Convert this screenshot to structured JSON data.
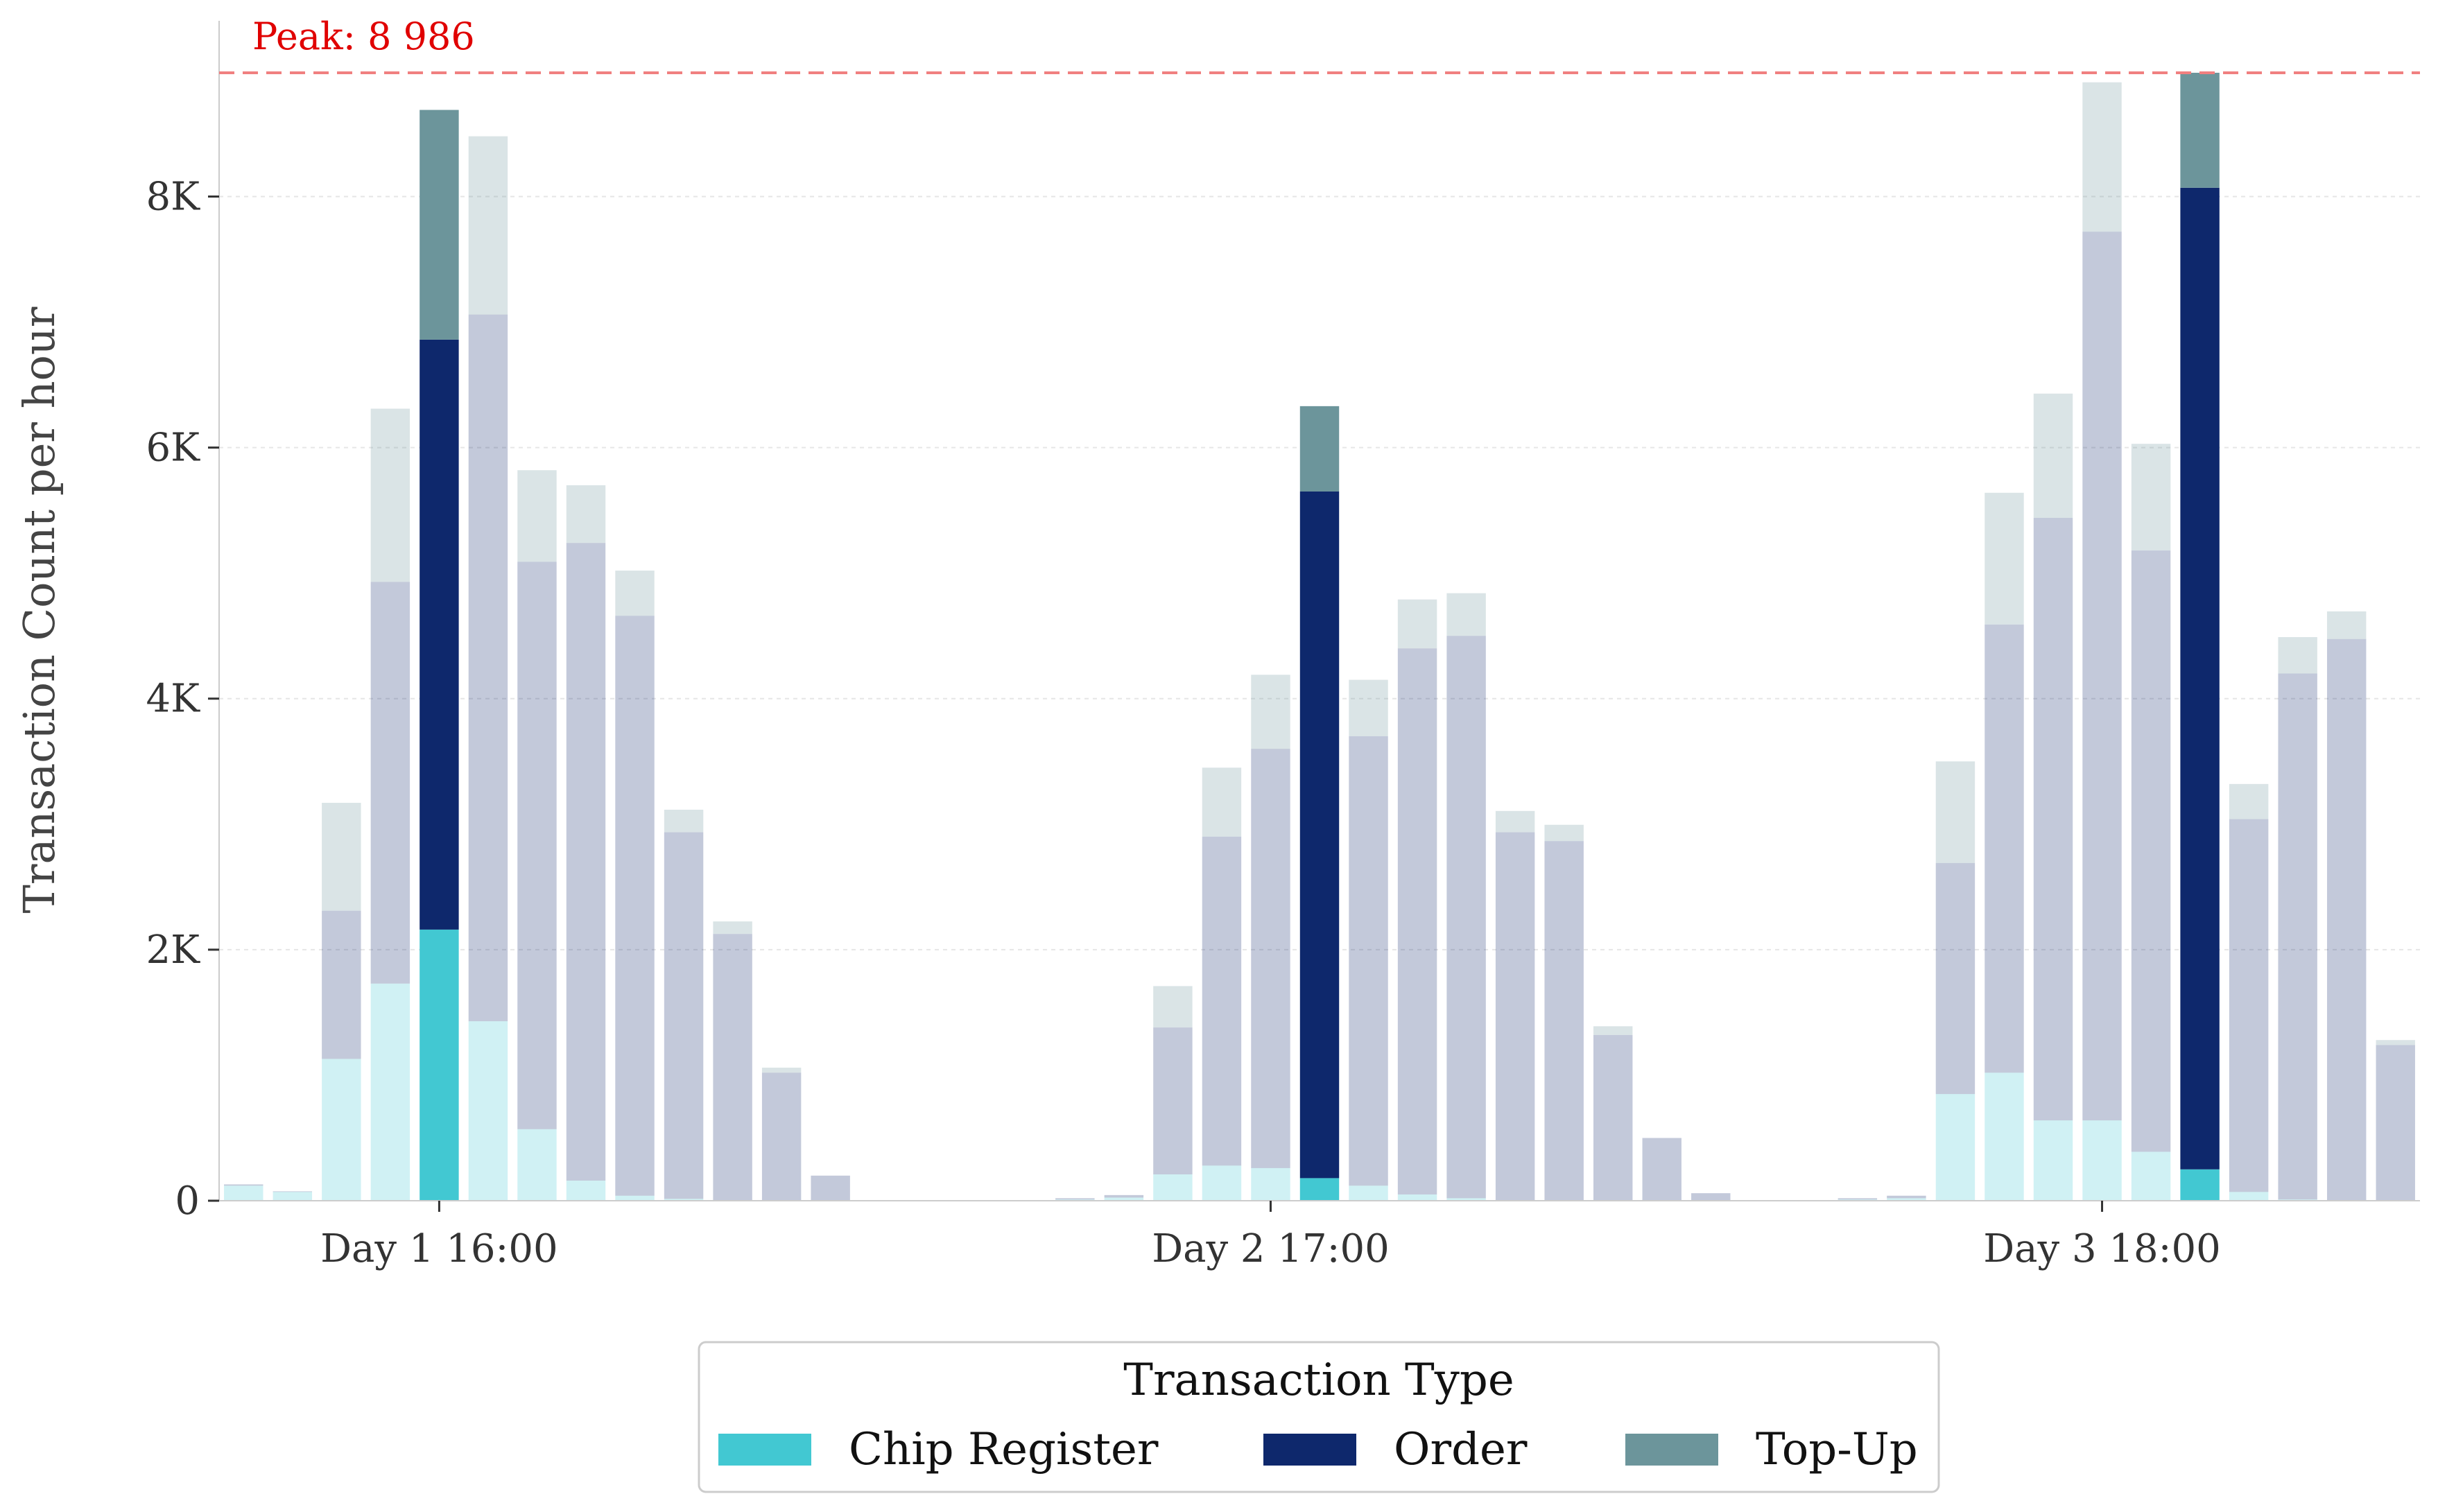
{
  "chart_data": {
    "type": "bar",
    "stacked": true,
    "ylabel": "Transaction Count per hour",
    "ylim": [
      0,
      9400
    ],
    "yticks": [
      0,
      2000,
      4000,
      6000,
      8000
    ],
    "ytick_labels": [
      "0",
      "2K",
      "4K",
      "6K",
      "8K"
    ],
    "xtick_labels": [
      {
        "label": "Day 1 16:00",
        "at": "Day 1 16:00"
      },
      {
        "label": "Day 2 17:00",
        "at": "Day 2 17:00"
      },
      {
        "label": "Day 3 18:00",
        "at": "Day 3 18:00"
      }
    ],
    "grid": "y-dotted",
    "legend": {
      "title": "Transaction Type",
      "placement": "bottom-center"
    },
    "peak_line": {
      "value": 8986,
      "label": "Peak: 8 986",
      "color": "#f08080"
    },
    "colors": {
      "chip": "#42c8d2",
      "order": "#0e286c",
      "topup": "#6c959b",
      "peak_text": "#e00000"
    },
    "series": [
      {
        "name": "Chip Register",
        "key": "chip"
      },
      {
        "name": "Order",
        "key": "order"
      },
      {
        "name": "Top-Up",
        "key": "topup"
      }
    ],
    "bars": [
      {
        "time": "Day 1 12:00",
        "chip": 120,
        "order": 10,
        "topup": 0
      },
      {
        "time": "Day 1 13:00",
        "chip": 70,
        "order": 5,
        "topup": 0
      },
      {
        "time": "Day 1 14:00",
        "chip": 1130,
        "order": 1180,
        "topup": 860
      },
      {
        "time": "Day 1 15:00",
        "chip": 1730,
        "order": 3200,
        "topup": 1380
      },
      {
        "time": "Day 1 16:00",
        "chip": 2160,
        "order": 4700,
        "topup": 1830,
        "highlight": true
      },
      {
        "time": "Day 1 17:00",
        "chip": 1430,
        "order": 5630,
        "topup": 1420
      },
      {
        "time": "Day 1 18:00",
        "chip": 570,
        "order": 4520,
        "topup": 730
      },
      {
        "time": "Day 1 19:00",
        "chip": 160,
        "order": 5080,
        "topup": 460
      },
      {
        "time": "Day 1 20:00",
        "chip": 40,
        "order": 4620,
        "topup": 360
      },
      {
        "time": "Day 1 21:00",
        "chip": 15,
        "order": 2920,
        "topup": 180
      },
      {
        "time": "Day 1 22:00",
        "chip": 5,
        "order": 2120,
        "topup": 100
      },
      {
        "time": "Day 1 23:00",
        "chip": 0,
        "order": 1020,
        "topup": 40
      },
      {
        "time": "Day 2 00:00",
        "chip": 0,
        "order": 200,
        "topup": 0
      },
      {
        "time": "Day 2 01:00",
        "chip": 0,
        "order": 0,
        "topup": 0
      },
      {
        "time": "Day 2 02:00",
        "chip": 0,
        "order": 0,
        "topup": 0
      },
      {
        "time": "Day 2 03:00",
        "chip": 0,
        "order": 0,
        "topup": 0
      },
      {
        "time": "Day 2 04:00",
        "chip": 0,
        "order": 0,
        "topup": 0
      },
      {
        "time": "Day 2 13:00",
        "chip": 10,
        "order": 10,
        "topup": 0
      },
      {
        "time": "Day 2 14:00",
        "chip": 25,
        "order": 20,
        "topup": 0
      },
      {
        "time": "Day 2 15:00",
        "chip": 210,
        "order": 1170,
        "topup": 330
      },
      {
        "time": "Day 2 16:00",
        "chip": 280,
        "order": 2620,
        "topup": 550
      },
      {
        "time": "Day 2 17:00",
        "chip": 260,
        "order": 3340,
        "topup": 590
      },
      {
        "time": "Day 2 18:00",
        "chip": 180,
        "order": 5470,
        "topup": 680,
        "highlight": true
      },
      {
        "time": "Day 2 19:00",
        "chip": 120,
        "order": 3580,
        "topup": 450
      },
      {
        "time": "Day 2 20:00",
        "chip": 50,
        "order": 4350,
        "topup": 390
      },
      {
        "time": "Day 2 21:00",
        "chip": 20,
        "order": 4480,
        "topup": 340
      },
      {
        "time": "Day 2 22:00",
        "chip": 5,
        "order": 2930,
        "topup": 170
      },
      {
        "time": "Day 2 23:00",
        "chip": 5,
        "order": 2860,
        "topup": 130
      },
      {
        "time": "Day 3 00:00",
        "chip": 0,
        "order": 1320,
        "topup": 70
      },
      {
        "time": "Day 3 01:00",
        "chip": 0,
        "order": 500,
        "topup": 0
      },
      {
        "time": "Day 3 02:00",
        "chip": 0,
        "order": 60,
        "topup": 0
      },
      {
        "time": "Day 3 03:00",
        "chip": 0,
        "order": 0,
        "topup": 0
      },
      {
        "time": "Day 3 04:00",
        "chip": 0,
        "order": 0,
        "topup": 0
      },
      {
        "time": "Day 3 13:00",
        "chip": 10,
        "order": 10,
        "topup": 0
      },
      {
        "time": "Day 3 14:00",
        "chip": 20,
        "order": 20,
        "topup": 0
      },
      {
        "time": "Day 3 15:00",
        "chip": 850,
        "order": 1840,
        "topup": 810
      },
      {
        "time": "Day 3 16:00",
        "chip": 1020,
        "order": 3570,
        "topup": 1050
      },
      {
        "time": "Day 3 17:00",
        "chip": 640,
        "order": 4800,
        "topup": 990
      },
      {
        "time": "Day 3 18:00",
        "chip": 640,
        "order": 7080,
        "topup": 1190
      },
      {
        "time": "Day 3 19:00",
        "chip": 390,
        "order": 4790,
        "topup": 850
      },
      {
        "time": "Day 3 20:00",
        "chip": 250,
        "order": 7820,
        "topup": 916,
        "highlight": true
      },
      {
        "time": "Day 3 21:00",
        "chip": 70,
        "order": 2970,
        "topup": 280
      },
      {
        "time": "Day 3 22:00",
        "chip": 10,
        "order": 4190,
        "topup": 290
      },
      {
        "time": "Day 3 23:00",
        "chip": 5,
        "order": 4470,
        "topup": 220
      },
      {
        "time": "Day 4 00:00",
        "chip": 0,
        "order": 1240,
        "topup": 40
      }
    ]
  }
}
